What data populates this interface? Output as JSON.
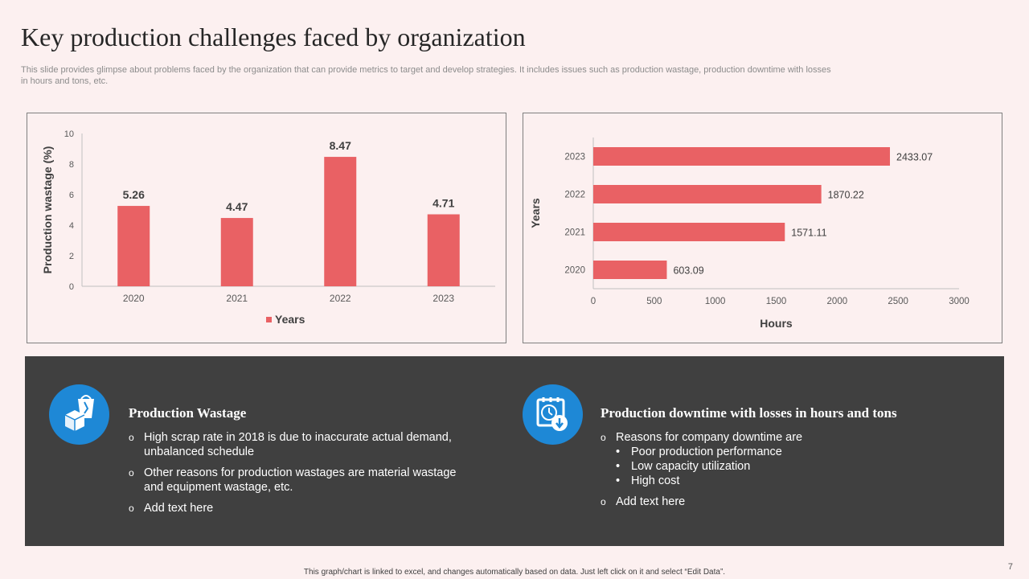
{
  "header": {
    "title": "Key production challenges faced by organization",
    "subtitle": "This slide provides glimpse about problems faced by the organization that can provide metrics to target and develop strategies. It includes issues such as production wastage, production downtime with losses in hours and tons, etc."
  },
  "colors": {
    "bar": "#e96164",
    "panel": "#404040",
    "icon_bg": "#1e88d6"
  },
  "chart_data": [
    {
      "type": "bar",
      "categories": [
        "2020",
        "2021",
        "2022",
        "2023"
      ],
      "values": [
        5.26,
        4.47,
        8.47,
        4.71
      ],
      "value_labels": [
        "5.26",
        "4.47",
        "8.47",
        "4.71"
      ],
      "ylabel": "Production wastage (%)",
      "xlabel": "",
      "ylim": [
        0,
        10
      ],
      "yticks": [
        "0",
        "2",
        "4",
        "6",
        "8",
        "10"
      ],
      "legend": [
        "Years"
      ],
      "legend_position": "bottom",
      "grid": false
    },
    {
      "type": "bar",
      "orientation": "horizontal",
      "categories": [
        "2020",
        "2021",
        "2022",
        "2023"
      ],
      "values": [
        603.09,
        1571.11,
        1870.22,
        2433.07
      ],
      "value_labels": [
        "603.09",
        "1571.11",
        "1870.22",
        "2433.07"
      ],
      "xlabel": "Hours",
      "ylabel": "Years",
      "xlim": [
        0,
        3000
      ],
      "xticks": [
        "0",
        "500",
        "1000",
        "1500",
        "2000",
        "2500",
        "3000"
      ],
      "grid": false
    }
  ],
  "panel": {
    "left": {
      "icon": "production-wastage-icon",
      "title": "Production Wastage",
      "bullets": [
        "High scrap rate in 2018 is due to inaccurate actual demand, unbalanced schedule",
        "Other reasons for production wastages are material wastage and equipment wastage, etc.",
        "Add text here"
      ]
    },
    "right": {
      "icon": "downtime-clock-icon",
      "title": "Production downtime with losses in hours and tons",
      "bullets": [
        "Reasons for company downtime are",
        "Add text here"
      ],
      "sub_bullets": [
        "Poor production performance",
        "Low capacity utilization",
        "High cost"
      ]
    }
  },
  "footer": {
    "note": "This graph/chart is linked to excel, and changes automatically based on data. Just left click on it and select “Edit Data”.",
    "page_number": "7"
  }
}
